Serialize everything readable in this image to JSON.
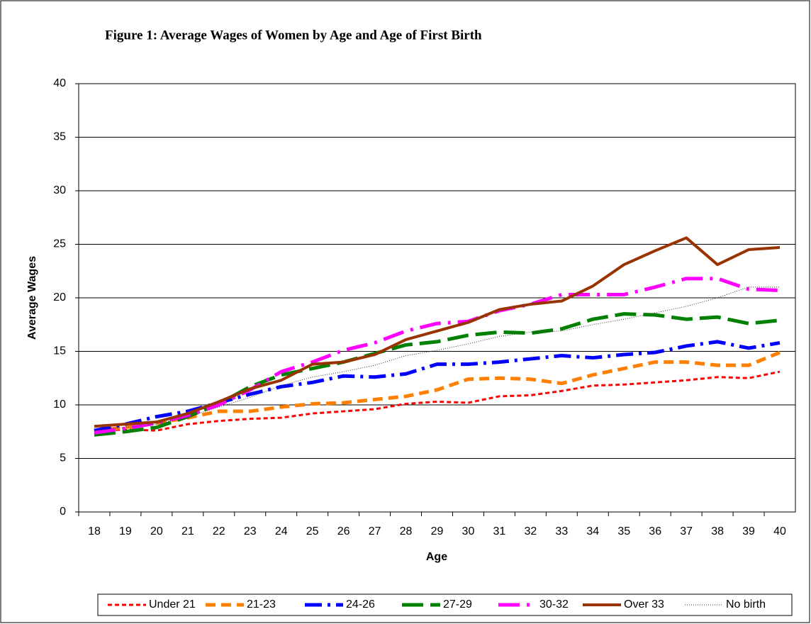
{
  "chart_data": {
    "type": "line",
    "title": "Figure 1: Average Wages of Women by Age and Age of First Birth",
    "x_label": "Age",
    "y_label": "Average Wages",
    "categories": [
      "18",
      "19",
      "20",
      "21",
      "22",
      "23",
      "24",
      "25",
      "26",
      "27",
      "28",
      "29",
      "30",
      "31",
      "32",
      "33",
      "34",
      "35",
      "36",
      "37",
      "38",
      "39",
      "40"
    ],
    "ylim": [
      0,
      40
    ],
    "yticks": [
      0,
      5,
      10,
      15,
      20,
      25,
      30,
      35,
      40
    ],
    "grid": true,
    "series": [
      {
        "name": "Under 21",
        "color": "#ff0000",
        "values": [
          7.6,
          7.7,
          7.6,
          8.2,
          8.5,
          8.7,
          8.8,
          9.2,
          9.4,
          9.6,
          10.1,
          10.3,
          10.2,
          10.8,
          10.9,
          11.3,
          11.8,
          11.9,
          12.1,
          12.3,
          12.6,
          12.5,
          13.1
        ]
      },
      {
        "name": "21-23",
        "color": "#ff8000",
        "values": [
          7.6,
          7.9,
          8.3,
          8.8,
          9.4,
          9.4,
          9.8,
          10.1,
          10.2,
          10.5,
          10.8,
          11.4,
          12.4,
          12.5,
          12.4,
          12.0,
          12.8,
          13.4,
          14.0,
          14.0,
          13.7,
          13.7,
          14.9
        ]
      },
      {
        "name": "24-26",
        "color": "#0000ff",
        "values": [
          7.6,
          8.2,
          8.9,
          9.4,
          10.2,
          11.0,
          11.7,
          12.1,
          12.7,
          12.6,
          12.9,
          13.8,
          13.8,
          14.0,
          14.3,
          14.6,
          14.4,
          14.7,
          14.9,
          15.5,
          15.9,
          15.3,
          15.8
        ]
      },
      {
        "name": "27-29",
        "color": "#008000",
        "values": [
          7.2,
          7.5,
          7.9,
          8.9,
          10.1,
          11.7,
          12.8,
          13.4,
          14.0,
          14.8,
          15.6,
          15.9,
          16.5,
          16.8,
          16.7,
          17.1,
          18.0,
          18.5,
          18.4,
          18.0,
          18.2,
          17.6,
          17.9
        ]
      },
      {
        "name": "30-32",
        "color": "#ff00ff",
        "values": [
          7.4,
          7.8,
          8.3,
          9.0,
          10.0,
          11.4,
          13.1,
          14.0,
          15.1,
          15.8,
          16.9,
          17.6,
          17.8,
          18.8,
          19.4,
          20.3,
          20.3,
          20.3,
          21.0,
          21.8,
          21.8,
          20.8,
          20.7
        ]
      },
      {
        "name": "Over 33",
        "color": "#993300",
        "values": [
          8.0,
          8.2,
          8.4,
          9.2,
          10.3,
          11.5,
          12.3,
          13.8,
          14.0,
          14.7,
          16.1,
          16.9,
          17.7,
          18.9,
          19.4,
          19.7,
          21.1,
          23.1,
          24.4,
          25.6,
          23.1,
          24.5,
          24.7
        ]
      },
      {
        "name": "No birth",
        "color": "#333333",
        "values": [
          7.6,
          7.9,
          8.2,
          8.9,
          9.8,
          10.7,
          11.8,
          12.6,
          13.1,
          13.7,
          14.6,
          15.1,
          15.7,
          16.4,
          16.8,
          16.9,
          17.5,
          18.0,
          18.6,
          19.2,
          20.0,
          21.0,
          21.0
        ]
      }
    ]
  }
}
